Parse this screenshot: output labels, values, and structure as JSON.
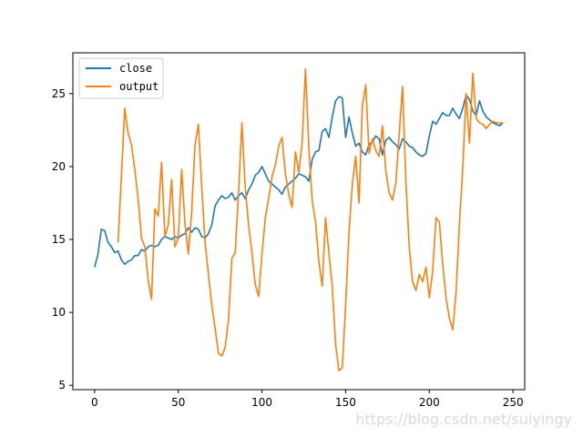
{
  "chart_data": {
    "type": "line",
    "title": "",
    "xlabel": "",
    "ylabel": "",
    "xlim": [
      -13,
      257
    ],
    "ylim": [
      4.7,
      27.8
    ],
    "xticks": [
      0,
      50,
      100,
      150,
      200,
      250
    ],
    "yticks": [
      5,
      10,
      15,
      20,
      25
    ],
    "grid": false,
    "legend_position": "top-left",
    "series": [
      {
        "name": "close",
        "color": "#1f77b4",
        "x": [
          0,
          2,
          4,
          6,
          8,
          10,
          12,
          14,
          16,
          18,
          20,
          22,
          24,
          26,
          28,
          30,
          32,
          34,
          36,
          38,
          40,
          42,
          44,
          46,
          48,
          50,
          52,
          54,
          56,
          58,
          60,
          62,
          64,
          66,
          68,
          70,
          72,
          74,
          76,
          78,
          80,
          82,
          84,
          86,
          88,
          90,
          92,
          94,
          96,
          98,
          100,
          102,
          104,
          106,
          108,
          110,
          112,
          114,
          116,
          118,
          120,
          122,
          124,
          126,
          128,
          130,
          132,
          134,
          136,
          138,
          140,
          142,
          144,
          146,
          148,
          150,
          152,
          154,
          156,
          158,
          160,
          162,
          164,
          166,
          168,
          170,
          172,
          174,
          176,
          178,
          180,
          182,
          184,
          186,
          188,
          190,
          192,
          194,
          196,
          198,
          200,
          202,
          204,
          206,
          208,
          210,
          212,
          214,
          216,
          218,
          220,
          222,
          224,
          226,
          228,
          230,
          232,
          234,
          236,
          238,
          240,
          242,
          244
        ],
        "y": [
          13.1,
          14.0,
          15.7,
          15.6,
          14.8,
          14.5,
          14.1,
          14.2,
          13.6,
          13.3,
          13.5,
          13.6,
          13.9,
          13.9,
          14.3,
          14.2,
          14.5,
          14.6,
          14.5,
          14.6,
          15.0,
          15.2,
          15.1,
          15.0,
          15.2,
          15.1,
          15.3,
          15.4,
          15.8,
          15.5,
          15.8,
          15.7,
          15.2,
          15.1,
          15.4,
          16.0,
          17.3,
          17.7,
          18.0,
          17.8,
          17.9,
          18.2,
          17.7,
          18.0,
          18.2,
          17.8,
          18.4,
          18.8,
          19.4,
          19.6,
          20.0,
          19.5,
          19.0,
          18.8,
          18.6,
          18.4,
          18.1,
          18.6,
          18.8,
          19.0,
          19.2,
          19.5,
          19.4,
          19.3,
          19.0,
          20.5,
          21.0,
          21.1,
          22.4,
          22.6,
          22.0,
          23.4,
          24.5,
          24.8,
          24.7,
          22.0,
          23.4,
          22.3,
          21.4,
          21.6,
          21.0,
          20.8,
          21.5,
          21.7,
          22.1,
          21.9,
          20.8,
          21.8,
          22.0,
          21.7,
          21.5,
          21.2,
          21.9,
          21.7,
          21.4,
          21.3,
          21.0,
          20.8,
          20.7,
          20.9,
          22.1,
          23.1,
          22.9,
          23.3,
          23.7,
          23.5,
          23.5,
          24.0,
          23.6,
          23.3,
          24.0,
          24.9,
          24.6,
          23.8,
          23.5,
          24.5,
          23.8,
          23.4,
          23.2,
          23.0,
          22.9,
          22.8,
          23.0
        ]
      },
      {
        "name": "output",
        "color": "#ff7f0e",
        "x": [
          14,
          16,
          18,
          20,
          22,
          24,
          26,
          28,
          30,
          32,
          34,
          36,
          38,
          40,
          42,
          44,
          46,
          48,
          50,
          52,
          54,
          56,
          58,
          60,
          62,
          64,
          66,
          68,
          70,
          72,
          74,
          76,
          78,
          80,
          82,
          84,
          86,
          88,
          90,
          92,
          94,
          96,
          98,
          100,
          102,
          104,
          106,
          108,
          110,
          112,
          114,
          116,
          118,
          120,
          122,
          124,
          126,
          128,
          130,
          132,
          134,
          136,
          138,
          140,
          142,
          144,
          146,
          148,
          150,
          152,
          154,
          156,
          158,
          160,
          162,
          164,
          166,
          168,
          170,
          172,
          174,
          176,
          178,
          180,
          182,
          184,
          186,
          188,
          190,
          192,
          194,
          196,
          198,
          200,
          202,
          204,
          206,
          208,
          210,
          212,
          214,
          216,
          218,
          220,
          222,
          224,
          226,
          228,
          230,
          232,
          234,
          236,
          238,
          240,
          242,
          244
        ],
        "y": [
          14.8,
          19.3,
          24.0,
          22.3,
          21.5,
          19.8,
          17.8,
          15.1,
          14.5,
          12.2,
          10.9,
          17.1,
          16.6,
          20.3,
          15.2,
          16.0,
          19.1,
          14.5,
          15.1,
          19.8,
          16.1,
          14.0,
          16.9,
          21.5,
          22.9,
          18.6,
          14.8,
          12.6,
          10.5,
          8.9,
          7.2,
          7.0,
          7.6,
          9.5,
          13.7,
          14.1,
          18.2,
          23.0,
          18.6,
          16.0,
          14.1,
          11.9,
          11.1,
          14.0,
          16.5,
          17.8,
          19.3,
          20.1,
          21.4,
          22.0,
          19.5,
          18.1,
          17.2,
          21.0,
          19.6,
          21.6,
          26.7,
          21.3,
          17.7,
          16.2,
          13.5,
          11.8,
          16.5,
          14.1,
          11.8,
          7.8,
          6.0,
          6.2,
          10.5,
          15.5,
          18.8,
          20.7,
          17.5,
          24.2,
          25.6,
          20.9,
          21.9,
          21.1,
          20.7,
          22.8,
          19.7,
          18.2,
          17.7,
          18.9,
          22.2,
          25.5,
          19.0,
          14.5,
          12.1,
          11.5,
          12.6,
          12.1,
          13.1,
          11.0,
          12.8,
          16.5,
          16.2,
          13.3,
          11.0,
          9.6,
          8.8,
          11.4,
          16.1,
          19.9,
          25.0,
          21.6,
          26.4,
          23.3,
          23.0,
          22.9,
          22.6,
          22.9,
          23.1,
          23.0,
          23.0,
          23.0
        ]
      }
    ]
  },
  "watermark": "https://blog.csdn.net/suiyingy"
}
